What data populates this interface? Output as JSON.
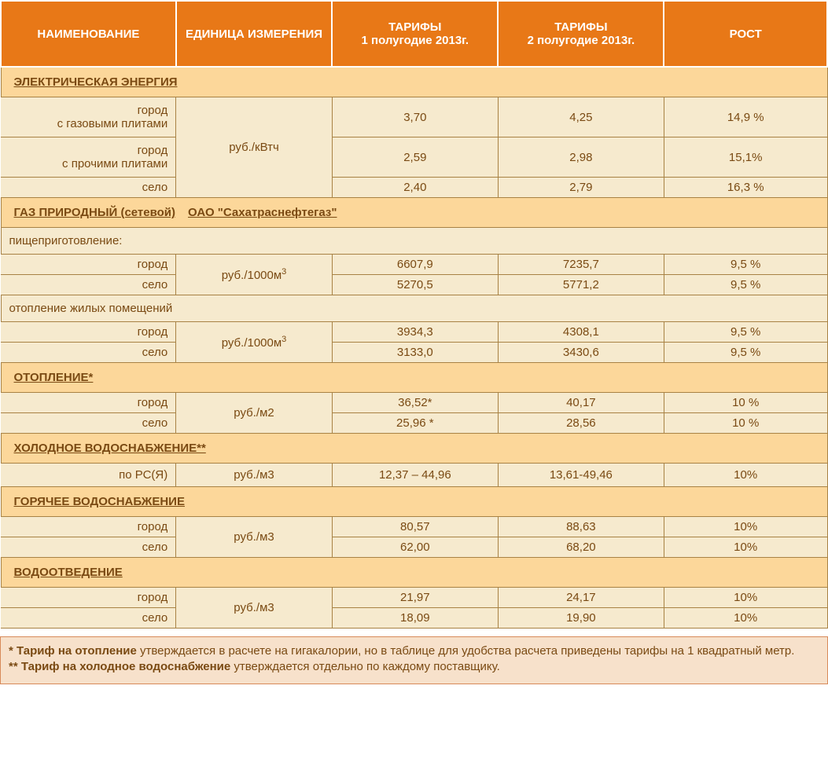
{
  "colors": {
    "header_bg": "#e87817",
    "header_text": "#ffffff",
    "section_bg": "#fcd79a",
    "row_bg": "#f6eace",
    "text": "#7a4a13",
    "border": "#a88244",
    "foot_bg": "#f7e1cb",
    "foot_border": "#d88a5a"
  },
  "fonts": {
    "family": "Verdana",
    "header_size_pt": 15,
    "cell_size_pt": 15
  },
  "columns": {
    "name": "НАИМЕНОВАНИЕ",
    "unit": "ЕДИНИЦА ИЗМЕРЕНИЯ",
    "tariff1": "ТАРИФЫ\n1 полугодие  2013г.",
    "tariff2": "ТАРИФЫ\n2 полугодие  2013г.",
    "growth": "РОСТ"
  },
  "sections": [
    {
      "title": "ЭЛЕКТРИЧЕСКАЯ  ЭНЕРГИЯ",
      "unit": "руб./кВтч",
      "rows": [
        {
          "name_lines": [
            "город",
            "с газовыми плитами"
          ],
          "t1": "3,70",
          "t2": "4,25",
          "g": "14,9 %"
        },
        {
          "name_lines": [
            "город",
            "с прочими плитами"
          ],
          "t1": "2,59",
          "t2": "2,98",
          "g": "15,1%"
        },
        {
          "name_lines": [
            "село"
          ],
          "t1": "2,40",
          "t2": "2,79",
          "g": "16,3 %"
        }
      ]
    },
    {
      "title": "ГАЗ  ПРИРОДНЫЙ  (сетевой)",
      "extra": "ОАО  \"Сахатраснефтегаз\"",
      "groups": [
        {
          "sub": "пищеприготовление:",
          "unit_html": "руб./1000м<sup>3</sup>",
          "rows": [
            {
              "name": "город",
              "t1": "6607,9",
              "t2": "7235,7",
              "g": "9,5 %"
            },
            {
              "name": "село",
              "t1": "5270,5",
              "t2": "5771,2",
              "g": "9,5 %"
            }
          ]
        },
        {
          "sub": "отопление  жилых  помещений",
          "unit_html": "руб./1000м<sup>3</sup>",
          "rows": [
            {
              "name": "город",
              "t1": "3934,3",
              "t2": "4308,1",
              "g": "9,5 %"
            },
            {
              "name": "село",
              "t1": "3133,0",
              "t2": "3430,6",
              "g": "9,5 %"
            }
          ]
        }
      ]
    },
    {
      "title": "ОТОПЛЕНИЕ*",
      "unit": "руб./м2",
      "rows": [
        {
          "name": "город",
          "t1": "36,52*",
          "t2": "40,17",
          "g": "10 %"
        },
        {
          "name": "село",
          "t1": "25,96 *",
          "t2": "28,56",
          "g": "10 %"
        }
      ]
    },
    {
      "title": "ХОЛОДНОЕ  ВОДОСНАБЖЕНИЕ**",
      "unit": "руб./м3",
      "rows": [
        {
          "name": "по РС(Я)",
          "t1": "12,37 – 44,96",
          "t2": "13,61-49,46",
          "g": "10%"
        }
      ]
    },
    {
      "title": "ГОРЯЧЕЕ  ВОДОСНАБЖЕНИЕ",
      "unit": "руб./м3",
      "rows": [
        {
          "name": "город",
          "t1": "80,57",
          "t2": "88,63",
          "g": "10%"
        },
        {
          "name": "село",
          "t1": "62,00",
          "t2": "68,20",
          "g": "10%"
        }
      ]
    },
    {
      "title": "ВОДООТВЕДЕНИЕ",
      "unit": "руб./м3",
      "rows": [
        {
          "name": "город",
          "t1": "21,97",
          "t2": "24,17",
          "g": "10%"
        },
        {
          "name": "село",
          "t1": "18,09",
          "t2": "19,90",
          "g": "10%"
        }
      ]
    }
  ],
  "footnotes": {
    "l1_bold": "* Тариф на отопление",
    "l1_rest": " утверждается в расчете на гигакалории, но в таблице для удобства расчета приведены тарифы на 1 квадратный метр.",
    "l2_bold": "** Тариф на холодное водоснабжение",
    "l2_rest": " утверждается отдельно по каждому поставщику."
  }
}
